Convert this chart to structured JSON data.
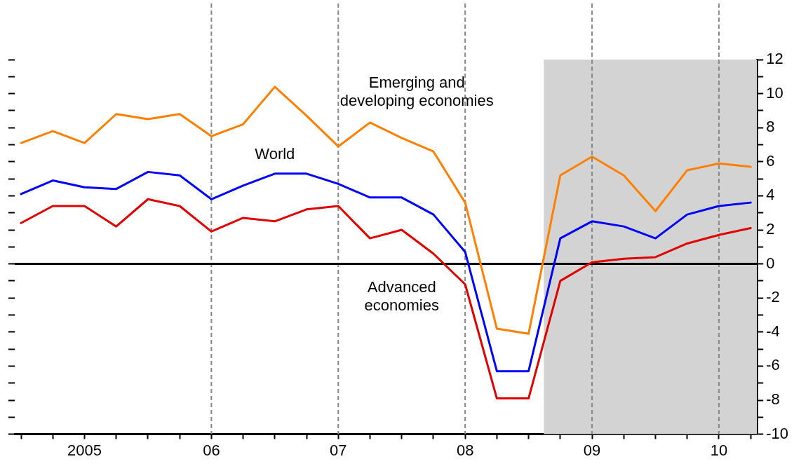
{
  "chart_data": {
    "type": "line",
    "x": [
      2004.5,
      2004.75,
      2005,
      2005.25,
      2005.5,
      2005.75,
      2006,
      2006.25,
      2006.5,
      2006.75,
      2007,
      2007.25,
      2007.5,
      2007.75,
      2008,
      2008.25,
      2008.5,
      2008.75,
      2009,
      2009.25,
      2009.5,
      2009.75,
      2010,
      2010.25
    ],
    "series": [
      {
        "name": "Emerging and\ndeveloping economies",
        "color": "#ff8000",
        "values": [
          7.1,
          7.8,
          7.1,
          8.8,
          8.5,
          8.8,
          7.5,
          8.2,
          10.4,
          8.7,
          6.9,
          8.3,
          7.4,
          6.6,
          3.6,
          -3.8,
          -4.1,
          5.2,
          6.3,
          5.2,
          3.1,
          5.5,
          5.9,
          5.7
        ]
      },
      {
        "name": "World",
        "color": "#0000ff",
        "values": [
          4.1,
          4.9,
          4.5,
          4.4,
          5.4,
          5.2,
          3.8,
          4.6,
          5.3,
          5.3,
          4.7,
          3.9,
          3.9,
          2.9,
          0.7,
          -6.3,
          -6.3,
          1.5,
          2.5,
          2.2,
          1.5,
          2.9,
          3.4,
          3.6
        ]
      },
      {
        "name": "Advanced\neconomies",
        "color": "#e00000",
        "values": [
          2.4,
          3.4,
          3.4,
          2.2,
          3.8,
          3.4,
          1.9,
          2.7,
          2.5,
          3.2,
          3.4,
          1.5,
          2.0,
          0.6,
          -1.2,
          -7.9,
          -7.9,
          -1.0,
          0.1,
          0.3,
          0.4,
          1.2,
          1.7,
          2.1
        ]
      }
    ],
    "xlim": [
      2004.45,
      2010.3
    ],
    "xticks": [
      {
        "value": 2004.5,
        "label": null
      },
      {
        "value": 2004.75,
        "label": null
      },
      {
        "value": 2005,
        "label": "2005"
      },
      {
        "value": 2005.25,
        "label": null
      },
      {
        "value": 2005.5,
        "label": null
      },
      {
        "value": 2005.75,
        "label": null
      },
      {
        "value": 2006,
        "label": "06"
      },
      {
        "value": 2006.25,
        "label": null
      },
      {
        "value": 2006.5,
        "label": null
      },
      {
        "value": 2006.75,
        "label": null
      },
      {
        "value": 2007,
        "label": "07"
      },
      {
        "value": 2007.25,
        "label": null
      },
      {
        "value": 2007.5,
        "label": null
      },
      {
        "value": 2007.75,
        "label": null
      },
      {
        "value": 2008,
        "label": "08"
      },
      {
        "value": 2008.25,
        "label": null
      },
      {
        "value": 2008.5,
        "label": null
      },
      {
        "value": 2008.75,
        "label": null
      },
      {
        "value": 2009,
        "label": "09"
      },
      {
        "value": 2009.25,
        "label": null
      },
      {
        "value": 2009.5,
        "label": null
      },
      {
        "value": 2009.75,
        "label": null
      },
      {
        "value": 2010,
        "label": "10"
      },
      {
        "value": 2010.25,
        "label": null
      }
    ],
    "ylim": [
      -10,
      12
    ],
    "yticks": [
      -10,
      {
        "value": -9,
        "label": null
      },
      -8,
      {
        "value": -7,
        "label": null
      },
      -6,
      {
        "value": -5,
        "label": null
      },
      -4,
      {
        "value": -3,
        "label": null
      },
      -2,
      {
        "value": -1,
        "label": null
      },
      0,
      {
        "value": 1,
        "label": null
      },
      2,
      {
        "value": 3,
        "label": null
      },
      4,
      {
        "value": 5,
        "label": null
      },
      6,
      {
        "value": 7,
        "label": null
      },
      8,
      {
        "value": 9,
        "label": null
      },
      10,
      {
        "value": 11,
        "label": null
      },
      12
    ],
    "bands": [
      {
        "axis": "x",
        "from": 2008.62,
        "to": 2010.3,
        "color": "#d3d3d3"
      }
    ],
    "ref_lines": [
      {
        "axis": "x",
        "value": 2006,
        "color": "#888888",
        "line_style": "dashed"
      },
      {
        "axis": "x",
        "value": 2007,
        "color": "#888888",
        "line_style": "dashed"
      },
      {
        "axis": "x",
        "value": 2008,
        "color": "#888888",
        "line_style": "dashed"
      },
      {
        "axis": "x",
        "value": 2009,
        "color": "#888888",
        "line_style": "dashed"
      },
      {
        "axis": "x",
        "value": 2010,
        "color": "#888888",
        "line_style": "dashed"
      },
      {
        "axis": "y",
        "value": 0,
        "color": "#000000",
        "line_style": "solid"
      }
    ],
    "grid": false,
    "legend": false,
    "marker": "none",
    "line_style": "solid"
  }
}
